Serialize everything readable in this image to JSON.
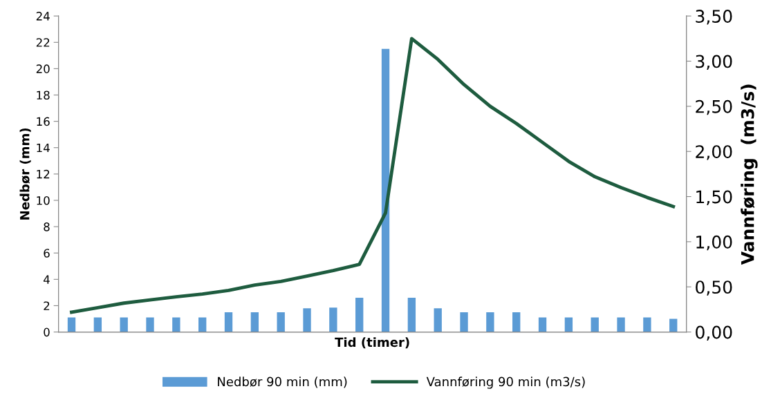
{
  "chart_data": {
    "type": "bar",
    "xlabel": "Tid (timer)",
    "ylabel": "Nedbør (mm)",
    "y2label": "Vannføring  (m3/s)",
    "categories": [
      null,
      null,
      null,
      null,
      null,
      null,
      null,
      null,
      null,
      null,
      null,
      null,
      null,
      null,
      null,
      null,
      null,
      null,
      null,
      null,
      null,
      null,
      null,
      null
    ],
    "series": [
      {
        "name": "Nedbør 90 min (mm)",
        "color": "#5b9bd5",
        "values": [
          1.1,
          1.1,
          1.1,
          1.1,
          1.1,
          1.1,
          1.5,
          1.5,
          1.5,
          1.8,
          1.85,
          2.6,
          21.5,
          2.6,
          1.8,
          1.5,
          1.5,
          1.5,
          1.1,
          1.1,
          1.1,
          1.1,
          1.1,
          1.0
        ]
      },
      {
        "name": "Vannføring 90 min (m3/s)",
        "type": "line",
        "axis": "y2",
        "color": "#1e5c3f",
        "values": [
          0.22,
          0.27,
          0.32,
          0.355,
          0.39,
          0.42,
          0.46,
          0.52,
          0.56,
          0.62,
          0.68,
          0.75,
          1.32,
          3.25,
          3.02,
          2.74,
          2.5,
          2.31,
          2.1,
          1.89,
          1.72,
          1.6,
          1.49,
          1.39
        ]
      }
    ],
    "ylim": [
      0,
      24
    ],
    "yticks": [
      0,
      2,
      4,
      6,
      8,
      10,
      12,
      14,
      16,
      18,
      20,
      22,
      24
    ],
    "y2lim": [
      0,
      3.5
    ],
    "y2ticks": [
      {
        "value": 0,
        "label": "0,00"
      },
      {
        "value": 0.5,
        "label": "0,50"
      },
      {
        "value": 1.0,
        "label": "1,00"
      },
      {
        "value": 1.5,
        "label": "1,50"
      },
      {
        "value": 2.0,
        "label": "2,00"
      },
      {
        "value": 2.5,
        "label": "2,50"
      },
      {
        "value": 3.0,
        "label": "3,00"
      },
      {
        "value": 3.5,
        "label": "3,50"
      }
    ],
    "grid": false,
    "legend": "bottom",
    "marker": "none",
    "line_style": "solid"
  }
}
